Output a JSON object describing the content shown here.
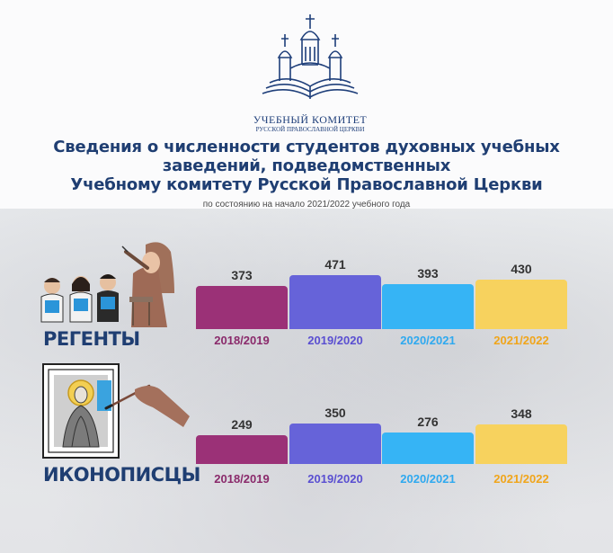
{
  "logo": {
    "line1": "УЧЕБНЫЙ КОМИТЕТ",
    "line2": "РУССКОЙ ПРАВОСЛАВНОЙ ЦЕРКВИ"
  },
  "title_lines": [
    "Сведения о численности студентов духовных учебных",
    "заведений, подведомственных",
    "Учебному комитету Русской Православной Церкви"
  ],
  "subtitle": "по состоянию на начало 2021/2022 учебного года",
  "colors": {
    "title": "#1f3e72",
    "series": [
      "#9b3177",
      "#6663d9",
      "#36b4f5",
      "#f7d25e"
    ],
    "category_labels": [
      "#8a2a6b",
      "#5a4fd1",
      "#2fa9ef",
      "#f0a51b"
    ]
  },
  "chart_data": [
    {
      "type": "bar",
      "label": "РЕГЕНТЫ",
      "categories": [
        "2018/2019",
        "2019/2020",
        "2020/2021",
        "2021/2022"
      ],
      "values": [
        373,
        471,
        393,
        430
      ]
    },
    {
      "type": "bar",
      "label": "ИКОНОПИСЦЫ",
      "categories": [
        "2018/2019",
        "2019/2020",
        "2020/2021",
        "2021/2022"
      ],
      "values": [
        249,
        350,
        276,
        348
      ]
    }
  ]
}
